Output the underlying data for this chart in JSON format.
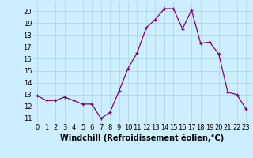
{
  "x": [
    0,
    1,
    2,
    3,
    4,
    5,
    6,
    7,
    8,
    9,
    10,
    11,
    12,
    13,
    14,
    15,
    16,
    17,
    18,
    19,
    20,
    21,
    22,
    23
  ],
  "y": [
    12.9,
    12.5,
    12.5,
    12.8,
    12.5,
    12.2,
    12.2,
    11.0,
    11.5,
    13.3,
    15.2,
    16.5,
    18.6,
    19.3,
    20.2,
    20.2,
    18.5,
    20.1,
    17.3,
    17.4,
    16.4,
    13.2,
    13.0,
    11.8
  ],
  "line_color": "#800080",
  "marker": "+",
  "marker_size": 3,
  "bg_color": "#cceeff",
  "grid_color": "#aadddd",
  "xlabel": "Windchill (Refroidissement éolien,°C)",
  "xlabel_fontsize": 7,
  "ylabel_ticks": [
    11,
    12,
    13,
    14,
    15,
    16,
    17,
    18,
    19,
    20
  ],
  "xticks": [
    0,
    1,
    2,
    3,
    4,
    5,
    6,
    7,
    8,
    9,
    10,
    11,
    12,
    13,
    14,
    15,
    16,
    17,
    18,
    19,
    20,
    21,
    22,
    23
  ],
  "ylim": [
    10.6,
    20.8
  ],
  "xlim": [
    -0.5,
    23.5
  ],
  "tick_fontsize": 6
}
